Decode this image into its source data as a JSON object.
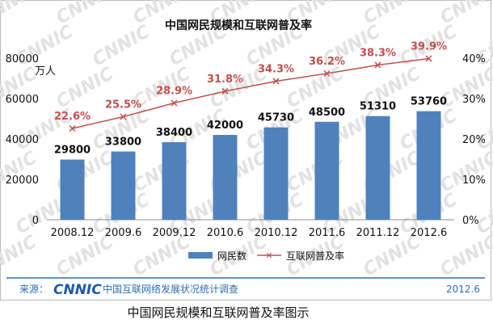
{
  "chart_data": {
    "type": "bar+line",
    "title": "中国网民规模和互联网普及率",
    "categories": [
      "2008.12",
      "2009.6",
      "2009.12",
      "2010.6",
      "2010.12",
      "2011.6",
      "2011.12",
      "2012.6"
    ],
    "series": [
      {
        "name": "网民数",
        "type": "bar",
        "axis": "left",
        "values": [
          29800,
          33800,
          38400,
          42000,
          45730,
          48500,
          51310,
          53760
        ],
        "color": "#4f81bd"
      },
      {
        "name": "互联网普及率",
        "type": "line",
        "axis": "right",
        "values": [
          22.6,
          25.5,
          28.9,
          31.8,
          34.3,
          36.2,
          38.3,
          39.9
        ],
        "labels": [
          "22.6%",
          "25.5%",
          "28.9%",
          "31.8%",
          "34.3%",
          "36.2%",
          "38.3%",
          "39.9%"
        ],
        "color": "#c0504d"
      }
    ],
    "y_left": {
      "ylim": [
        0,
        80000
      ],
      "ticks": [
        "0",
        "20000",
        "40000",
        "60000",
        "80000"
      ],
      "unit": "万人"
    },
    "y_right": {
      "ylim": [
        0,
        40
      ],
      "ticks": [
        "0%",
        "10%",
        "20%",
        "30%",
        "40%"
      ]
    },
    "grid": false,
    "legend_placement": "bottom"
  },
  "watermark": "CNNIC",
  "footer": {
    "source_label": "来源：",
    "logo_text": "CNNIC",
    "survey_name": "中国互联网络发展状况统计调查",
    "date": "2012.6",
    "line_color": "#2c6db3"
  },
  "caption": "中国网民规模和互联网普及率图示"
}
